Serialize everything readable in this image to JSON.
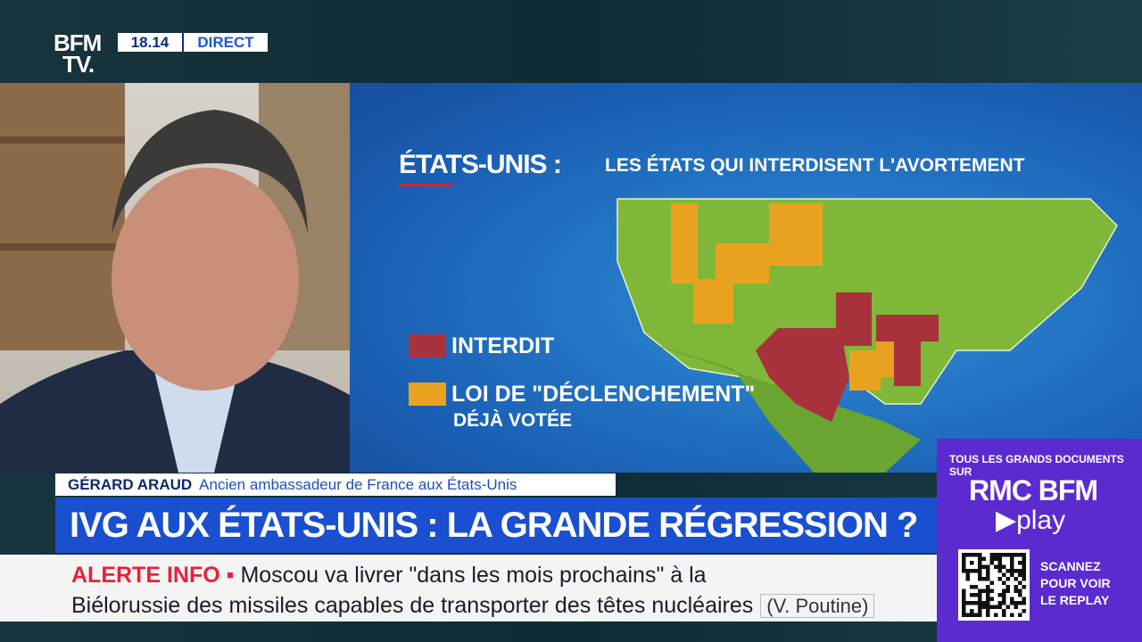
{
  "header": {
    "logo_top": "BFM",
    "logo_bottom": "TV.",
    "time": "18.14",
    "live": "DIRECT"
  },
  "map": {
    "title": "ÉTATS-UNIS :",
    "subtitle": "LES ÉTATS QUI INTERDISENT L'AVORTEMENT",
    "legend": [
      {
        "label": "INTERDIT",
        "color": "#a8323c"
      },
      {
        "label": "LOI DE \"DÉCLENCHEMENT\"",
        "label_line2": "DÉJÀ VOTÉE",
        "color": "#e9a21f"
      }
    ]
  },
  "guest": {
    "name": "GÉRARD ARAUD",
    "role": "Ancien ambassadeur de France aux États-Unis"
  },
  "headline": "IVG AUX ÉTATS-UNIS : LA GRANDE RÉGRESSION ?",
  "ticker": {
    "label": "ALERTE INFO",
    "line1": "Moscou va livrer \"dans les mois prochains\" à la",
    "line2": "Biélorussie des missiles capables de transporter des têtes nucléaires",
    "source": "(V. Poutine)"
  },
  "promo": {
    "intro": "TOUS LES GRANDS DOCUMENTS SUR",
    "brand": "RMC BFM",
    "brand2": "play",
    "cta": [
      "SCANNEZ",
      "POUR VOIR",
      "LE REPLAY"
    ]
  }
}
